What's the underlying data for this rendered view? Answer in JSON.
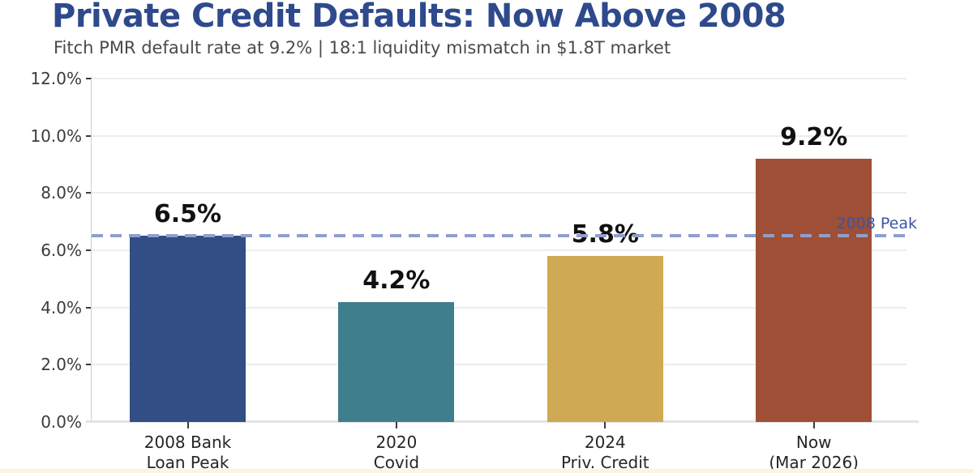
{
  "header": {
    "title": "Private Credit Defaults: Now Above 2008",
    "subtitle": "Fitch PMR default rate at 9.2% | 18:1 liquidity mismatch in $1.8T market",
    "title_color": "#2e4a8c",
    "subtitle_color": "#4a4a4a"
  },
  "chart_data": {
    "type": "bar",
    "title": "Private Credit Defaults: Now Above 2008",
    "subtitle": "Fitch PMR default rate at 9.2% | 18:1 liquidity mismatch in $1.8T market",
    "categories": [
      "2008 Bank\nLoan Peak",
      "2020\nCovid",
      "2024\nPriv. Credit",
      "Now\n(Mar 2026)"
    ],
    "values": [
      6.5,
      4.2,
      5.8,
      9.2
    ],
    "value_labels": [
      "6.5%",
      "4.2%",
      "5.8%",
      "9.2%"
    ],
    "bar_colors": [
      "#334e85",
      "#3f7e8c",
      "#cfa953",
      "#9e4f35"
    ],
    "xlabel": "",
    "ylabel": "",
    "ylim": [
      0,
      12
    ],
    "grid": true,
    "legend": "none",
    "y_ticks": [
      {
        "value": 0,
        "label": "0.0%"
      },
      {
        "value": 2,
        "label": "2.0%"
      },
      {
        "value": 4,
        "label": "4.0%"
      },
      {
        "value": 6,
        "label": "6.0%"
      },
      {
        "value": 8,
        "label": "8.0%"
      },
      {
        "value": 10,
        "label": "10.0%"
      },
      {
        "value": 12,
        "label": "12.0%"
      }
    ],
    "reference_line": {
      "value": 6.5,
      "label": "2008 Peak",
      "line_color": "#8e9fce",
      "label_color": "#3a55a5"
    }
  },
  "decor": {
    "bottom_strip_color": "#faf5e1"
  }
}
